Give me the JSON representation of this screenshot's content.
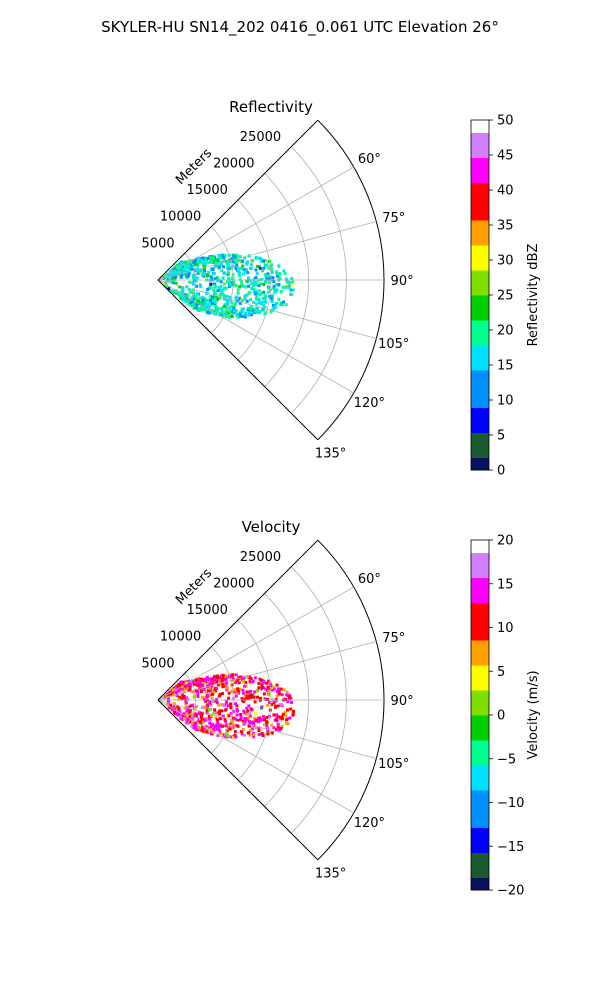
{
  "figure": {
    "title": "SKYLER-HU  SN14_202  0416_0.061 UTC Elevation 26°"
  },
  "chart_data": [
    {
      "type": "heatmap",
      "subtype": "polar-sector (PPI)",
      "title": "Reflectivity",
      "radial_label": "Meters",
      "radial_ticks": [
        5000,
        10000,
        15000,
        20000,
        25000
      ],
      "rlim": [
        0,
        30000
      ],
      "theta_ticks_deg": [
        60,
        75,
        90,
        105,
        120,
        135
      ],
      "theta_tick_labels": [
        "60°",
        "75°",
        "90°",
        "105°",
        "120°",
        "135°"
      ],
      "theta_range_deg": [
        45,
        135
      ],
      "grid": true,
      "colorbar": {
        "label": "Reflectivity dBZ",
        "range": [
          0,
          50
        ],
        "ticks": [
          0,
          5,
          10,
          15,
          20,
          25,
          30,
          35,
          40,
          45,
          50
        ],
        "tick_labels": [
          "0",
          "5",
          "10",
          "15",
          "20",
          "25",
          "30",
          "35",
          "40",
          "45",
          "50"
        ]
      },
      "echo_extent_m": [
        500,
        18000
      ],
      "echo_azimuth_deg": [
        48,
        128
      ],
      "typical_values": [
        12,
        22
      ],
      "colors": [
        "#0a1260",
        "#1a5a30",
        "#0000ff",
        "#0090ff",
        "#00e0ff",
        "#00ff90",
        "#00d000",
        "#7fe000",
        "#ffff00",
        "#ffa000",
        "#ff0000",
        "#ff00ff",
        "#d080ff",
        "#ffffff"
      ]
    },
    {
      "type": "heatmap",
      "subtype": "polar-sector (PPI)",
      "title": "Velocity",
      "radial_label": "Meters",
      "radial_ticks": [
        5000,
        10000,
        15000,
        20000,
        25000
      ],
      "rlim": [
        0,
        30000
      ],
      "theta_ticks_deg": [
        60,
        75,
        90,
        105,
        120,
        135
      ],
      "theta_tick_labels": [
        "60°",
        "75°",
        "90°",
        "105°",
        "120°",
        "135°"
      ],
      "theta_range_deg": [
        45,
        135
      ],
      "grid": true,
      "colorbar": {
        "label": "Velocity (m/s)",
        "range": [
          -20,
          20
        ],
        "ticks": [
          -20,
          -15,
          -10,
          -5,
          0,
          5,
          10,
          15,
          20
        ],
        "tick_labels": [
          "−20",
          "−15",
          "−10",
          "−5",
          "0",
          "5",
          "10",
          "15",
          "20"
        ]
      },
      "echo_extent_m": [
        500,
        18000
      ],
      "echo_azimuth_deg": [
        48,
        128
      ],
      "typical_values": [
        8,
        16
      ],
      "colors": [
        "#0a1260",
        "#1a5a30",
        "#0000ff",
        "#0090ff",
        "#00e0ff",
        "#00ff90",
        "#00d000",
        "#7fe000",
        "#ffff00",
        "#ffa000",
        "#ff0000",
        "#ff00ff",
        "#d080ff",
        "#ffffff"
      ]
    }
  ]
}
